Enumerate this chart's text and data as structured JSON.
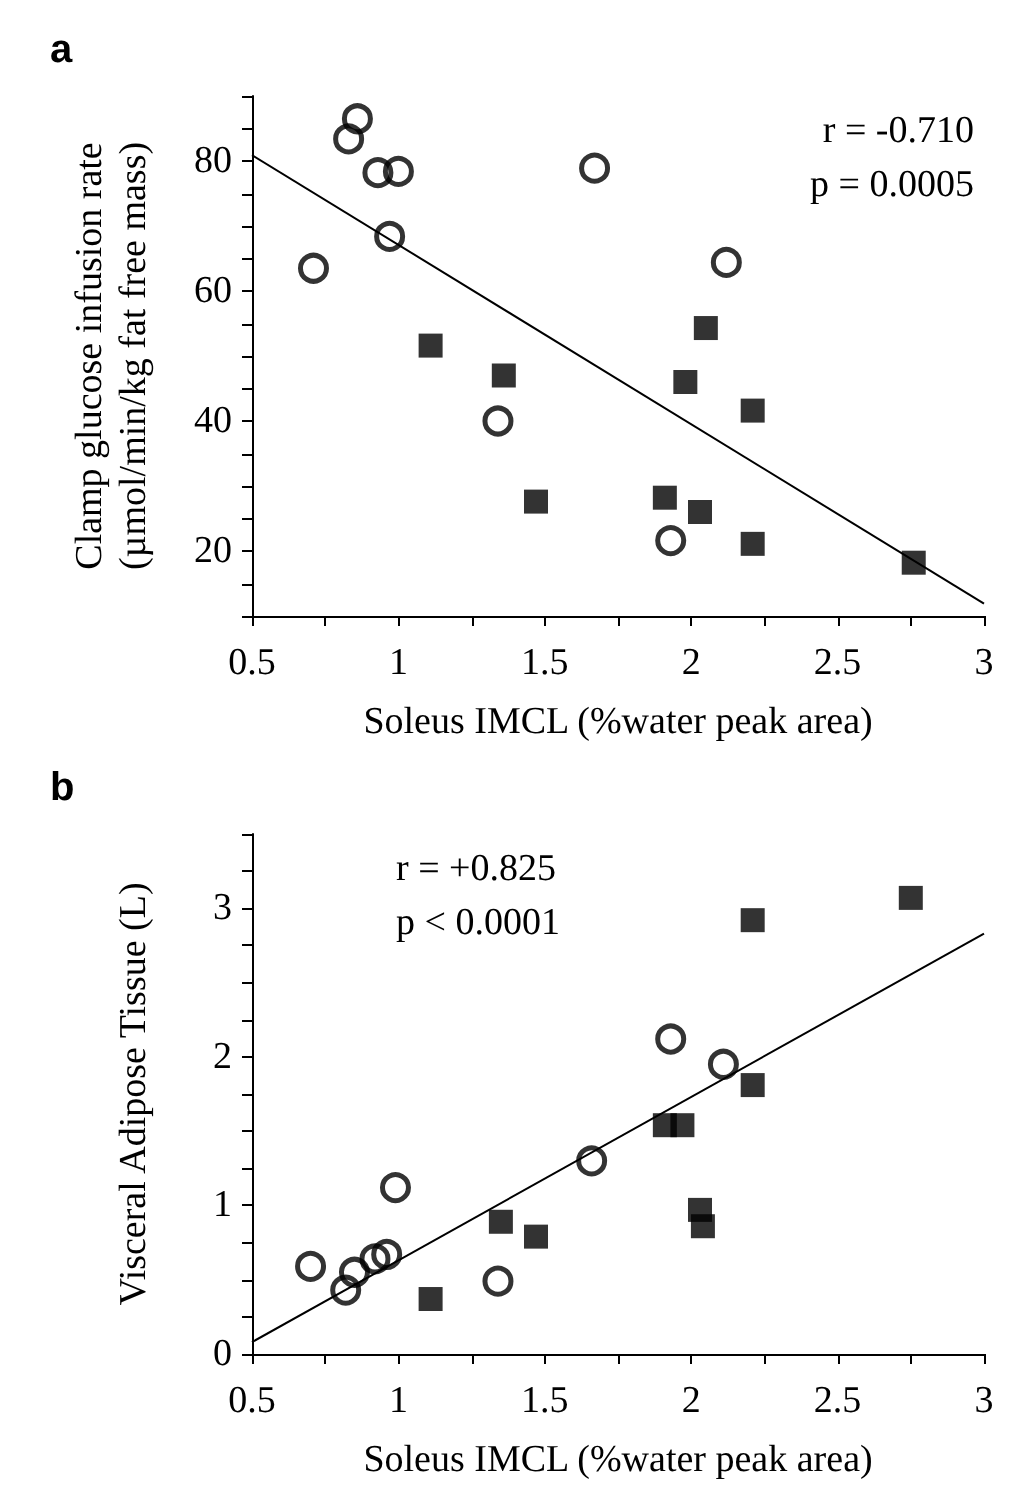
{
  "chart_data": [
    {
      "type": "scatter",
      "title": "a",
      "xlabel": "Soleus IMCL (%water peak area)",
      "ylabel": "Clamp glucose infusion rate\n(µmol/min/kg fat free mass)",
      "annotations": [
        "r = -0.710",
        "p = 0.0005"
      ],
      "xlim": [
        0.5,
        3
      ],
      "xticks": [
        0.5,
        {
          "value": 0.75,
          "label": null
        },
        1,
        {
          "value": 1.25,
          "label": null
        },
        1.5,
        {
          "value": 1.75,
          "label": null
        },
        2,
        {
          "value": 2.25,
          "label": null
        },
        2.5,
        {
          "value": 2.75,
          "label": null
        },
        3
      ],
      "ylim": [
        10,
        90
      ],
      "yticks": [
        {
          "value": 10,
          "label": null
        },
        {
          "value": 15,
          "label": null
        },
        20,
        {
          "value": 25,
          "label": null
        },
        {
          "value": 30,
          "label": null
        },
        {
          "value": 35,
          "label": null
        },
        40,
        {
          "value": 45,
          "label": null
        },
        {
          "value": 50,
          "label": null
        },
        {
          "value": 55,
          "label": null
        },
        60,
        {
          "value": 65,
          "label": null
        },
        {
          "value": 70,
          "label": null
        },
        {
          "value": 75,
          "label": null
        },
        80,
        {
          "value": 85,
          "label": null
        },
        {
          "value": 90,
          "label": null
        }
      ],
      "grid": false,
      "series": [
        {
          "type": "scatter",
          "marker": "circle",
          "color": "#000000",
          "x": [
            0.71,
            0.83,
            0.86,
            0.93,
            1.0,
            0.97,
            1.67,
            2.12,
            1.34,
            1.93
          ],
          "values": [
            63.5,
            83.4,
            86.5,
            78.2,
            78.4,
            68.4,
            78.9,
            64.4,
            40,
            21.6
          ]
        },
        {
          "type": "scatter",
          "marker": "square",
          "color": "#000000",
          "x": [
            1.11,
            1.36,
            1.47,
            2.05,
            1.98,
            2.21,
            1.91,
            2.03,
            2.21,
            2.76
          ],
          "values": [
            51.6,
            47,
            27.6,
            54.3,
            46,
            41.6,
            28.2,
            26,
            21.1,
            18.2
          ]
        },
        {
          "type": "line",
          "marker": "none",
          "line_style": "solid",
          "color": "#000000",
          "x": [
            0.5,
            3
          ],
          "values": [
            80.9,
            11.9
          ]
        }
      ]
    },
    {
      "type": "scatter",
      "title": "b",
      "xlabel": "Soleus IMCL (%water peak area)",
      "ylabel": "Visceral Adipose Tissue (L)",
      "annotations": [
        "r = +0.825",
        "p < 0.0001"
      ],
      "xlim": [
        0.5,
        3
      ],
      "xticks": [
        0.5,
        {
          "value": 0.75,
          "label": null
        },
        1,
        {
          "value": 1.25,
          "label": null
        },
        1.5,
        {
          "value": 1.75,
          "label": null
        },
        2,
        {
          "value": 2.25,
          "label": null
        },
        2.5,
        {
          "value": 2.75,
          "label": null
        },
        3
      ],
      "ylim": [
        0,
        3.5
      ],
      "yticks": [
        0,
        {
          "value": 0.25,
          "label": null
        },
        {
          "value": 0.5,
          "label": null
        },
        {
          "value": 0.75,
          "label": null
        },
        1,
        {
          "value": 1.25,
          "label": null
        },
        {
          "value": 1.5,
          "label": null
        },
        {
          "value": 1.75,
          "label": null
        },
        2,
        {
          "value": 2.25,
          "label": null
        },
        {
          "value": 2.5,
          "label": null
        },
        {
          "value": 2.75,
          "label": null
        },
        3,
        {
          "value": 3.25,
          "label": null
        },
        {
          "value": 3.5,
          "label": null
        }
      ],
      "grid": false,
      "series": [
        {
          "type": "scatter",
          "marker": "circle",
          "color": "#000000",
          "x": [
            0.7,
            0.82,
            0.85,
            0.92,
            0.96,
            0.99,
            1.34,
            1.66,
            1.93,
            2.11
          ],
          "values": [
            0.59,
            0.43,
            0.55,
            0.64,
            0.67,
            1.12,
            0.49,
            1.3,
            2.12,
            1.95
          ]
        },
        {
          "type": "scatter",
          "marker": "square",
          "color": "#000000",
          "x": [
            1.11,
            1.35,
            1.47,
            1.91,
            1.97,
            2.03,
            2.04,
            2.21,
            2.21,
            2.75
          ],
          "values": [
            0.37,
            0.89,
            0.79,
            1.54,
            1.54,
            0.97,
            0.86,
            2.92,
            1.81,
            3.07
          ]
        },
        {
          "type": "line",
          "marker": "none",
          "line_style": "solid",
          "color": "#000000",
          "x": [
            0.5,
            3
          ],
          "values": [
            0.08,
            2.83
          ]
        }
      ]
    }
  ]
}
